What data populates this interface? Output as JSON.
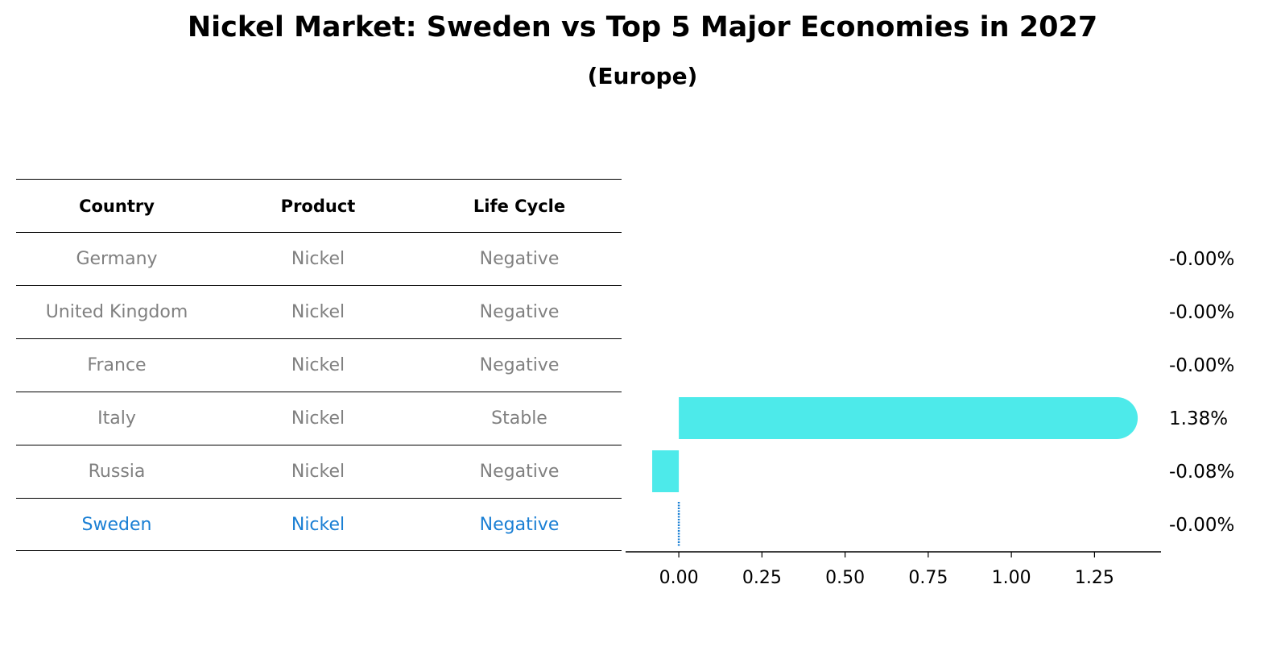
{
  "title": "Nickel Market: Sweden vs Top 5 Major Economies in 2027",
  "subtitle": "(Europe)",
  "table": {
    "headers": [
      "Country",
      "Product",
      "Life Cycle"
    ],
    "rows": [
      [
        "Germany",
        "Nickel",
        "Negative"
      ],
      [
        "United Kingdom",
        "Nickel",
        "Negative"
      ],
      [
        "France",
        "Nickel",
        "Negative"
      ],
      [
        "Italy",
        "Nickel",
        "Stable"
      ],
      [
        "Russia",
        "Nickel",
        "Negative"
      ],
      [
        "Sweden",
        "Nickel",
        "Negative"
      ]
    ],
    "highlight_row": 5,
    "highlight_color": "#1a7fd4",
    "text_color": "#808080"
  },
  "chart_data": {
    "type": "bar",
    "orientation": "horizontal",
    "categories": [
      "Germany",
      "United Kingdom",
      "France",
      "Italy",
      "Russia",
      "Sweden"
    ],
    "values": [
      -0.0,
      -0.0,
      -0.0,
      1.38,
      -0.08,
      -0.0
    ],
    "value_labels": [
      "-0.00%",
      "-0.00%",
      "-0.00%",
      "1.38%",
      "-0.08%",
      "-0.00%"
    ],
    "xlim": [
      -0.16,
      1.45
    ],
    "xticks": [
      "0.00",
      "0.25",
      "0.50",
      "0.75",
      "1.00",
      "1.25"
    ],
    "bar_color": "#4deaea",
    "highlight_line_color": "#1a7fd4"
  }
}
